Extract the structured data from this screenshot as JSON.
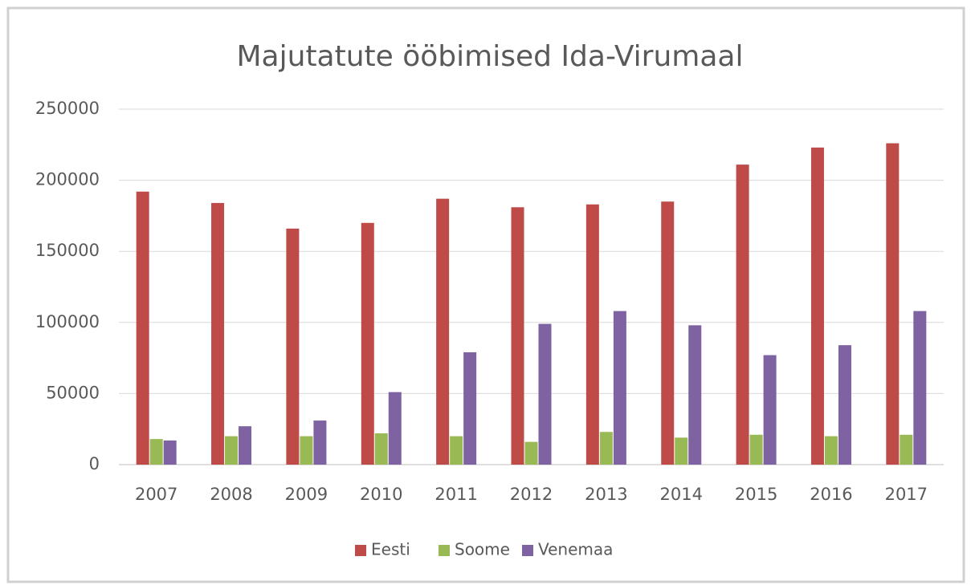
{
  "chart_data": {
    "type": "bar",
    "title": "Majutatute ööbimised Ida-Virumaal",
    "categories": [
      "2007",
      "2008",
      "2009",
      "2010",
      "2011",
      "2012",
      "2013",
      "2014",
      "2015",
      "2016",
      "2017"
    ],
    "series": [
      {
        "name": "Eesti",
        "color": "#be4b48",
        "values": [
          192000,
          184000,
          166000,
          170000,
          187000,
          181000,
          183000,
          185000,
          211000,
          223000,
          226000
        ]
      },
      {
        "name": "Soome",
        "color": "#98b954",
        "values": [
          18000,
          20000,
          20000,
          22000,
          20000,
          16000,
          23000,
          19000,
          21000,
          20000,
          21000
        ]
      },
      {
        "name": "Venemaa",
        "color": "#7e62a1",
        "values": [
          17000,
          27000,
          31000,
          51000,
          79000,
          99000,
          108000,
          98000,
          77000,
          84000,
          108000
        ]
      }
    ],
    "ylim": [
      0,
      250000
    ],
    "yticks": [
      0,
      50000,
      100000,
      150000,
      200000,
      250000
    ],
    "grid": true,
    "legend": "bottom"
  }
}
